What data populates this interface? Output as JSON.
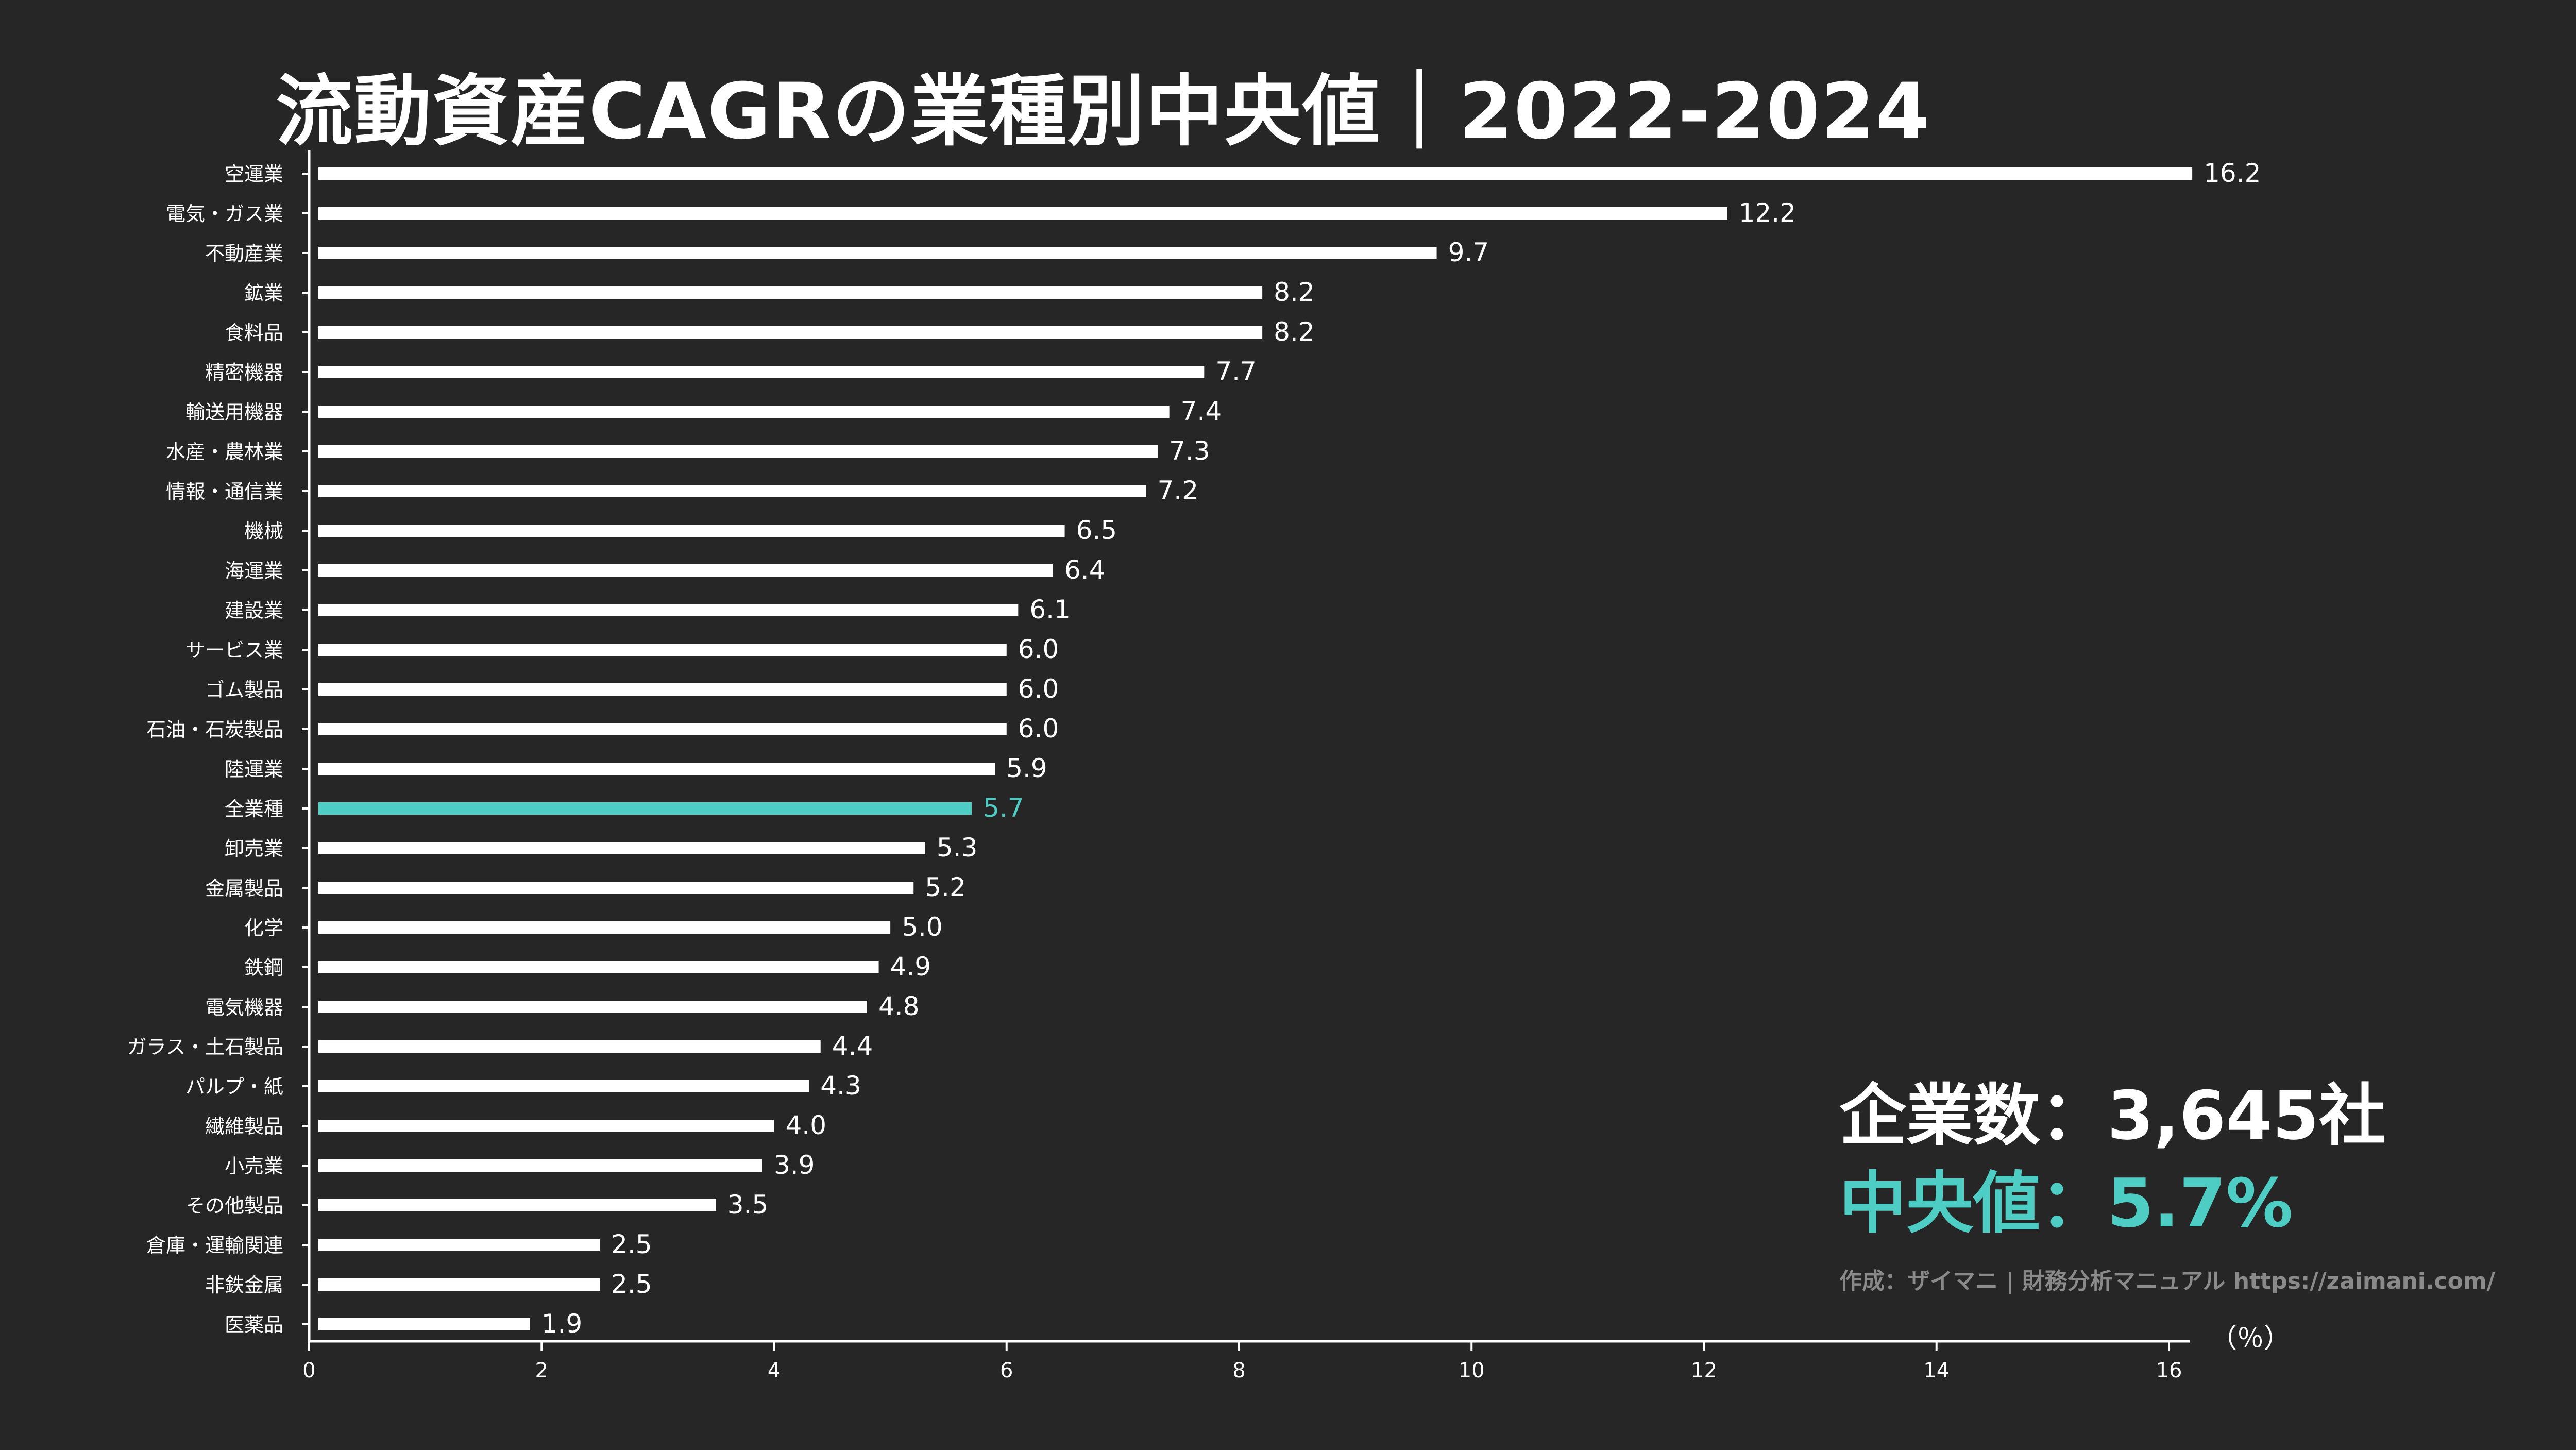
{
  "title": "流動資産CAGRの業種別中央値｜2022-2024",
  "summary": {
    "company_count_label": "企業数：",
    "company_count_value": "3,645社",
    "median_label": "中央値：",
    "median_value": "5.7%",
    "credit": "作成：ザイマニ | 財務分析マニュアル https://zaimani.com/"
  },
  "colors": {
    "background": "#262626",
    "bar": "#ffffff",
    "highlight": "#4ecdc4",
    "text": "#ffffff",
    "credit": "#8a8a8a"
  },
  "chart_data": {
    "type": "bar",
    "orientation": "horizontal",
    "x_unit_label": "（％）",
    "xlim": [
      0,
      16
    ],
    "xticks": [
      0,
      2,
      4,
      6,
      8,
      10,
      12,
      14,
      16
    ],
    "highlight_category": "全業種",
    "categories": [
      "空運業",
      "電気・ガス業",
      "不動産業",
      "鉱業",
      "食料品",
      "精密機器",
      "輸送用機器",
      "水産・農林業",
      "情報・通信業",
      "機械",
      "海運業",
      "建設業",
      "サービス業",
      "ゴム製品",
      "石油・石炭製品",
      "陸運業",
      "全業種",
      "卸売業",
      "金属製品",
      "化学",
      "鉄鋼",
      "電気機器",
      "ガラス・土石製品",
      "パルプ・紙",
      "繊維製品",
      "小売業",
      "その他製品",
      "倉庫・運輸関連",
      "非鉄金属",
      "医薬品"
    ],
    "values": [
      16.2,
      12.2,
      9.7,
      8.2,
      8.2,
      7.7,
      7.4,
      7.3,
      7.2,
      6.5,
      6.4,
      6.1,
      6.0,
      6.0,
      6.0,
      5.9,
      5.7,
      5.3,
      5.2,
      5.0,
      4.9,
      4.8,
      4.4,
      4.3,
      4.0,
      3.9,
      3.5,
      2.5,
      2.5,
      1.9
    ],
    "value_labels": [
      "16.2",
      "12.2",
      "9.7",
      "8.2",
      "8.2",
      "7.7",
      "7.4",
      "7.3",
      "7.2",
      "6.5",
      "6.4",
      "6.1",
      "6.0",
      "6.0",
      "6.0",
      "5.9",
      "5.7",
      "5.3",
      "5.2",
      "5.0",
      "4.9",
      "4.8",
      "4.4",
      "4.3",
      "4.0",
      "3.9",
      "3.5",
      "2.5",
      "2.5",
      "1.9"
    ]
  }
}
